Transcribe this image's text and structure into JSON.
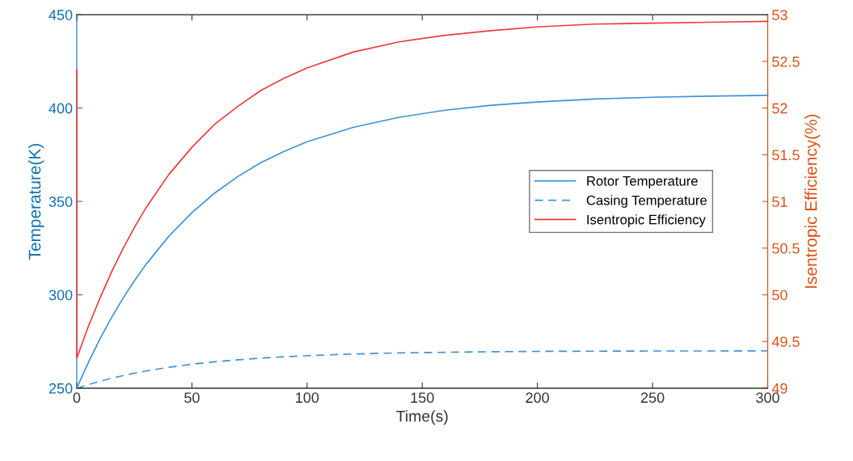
{
  "chart_data": {
    "type": "line",
    "xlabel": "Time(s)",
    "ylabel": "Temperature(K)",
    "y2label": "Isentropic Efficiency(%)",
    "xlim": [
      0,
      300
    ],
    "xticks": [
      0,
      50,
      100,
      150,
      200,
      250,
      300
    ],
    "ylim": [
      250,
      450
    ],
    "yticks": [
      250,
      300,
      350,
      400,
      450
    ],
    "y2lim": [
      49,
      53
    ],
    "y2ticks": [
      49,
      49.5,
      50,
      50.5,
      51,
      51.5,
      52,
      52.5,
      53
    ],
    "grid": false,
    "legend": "right",
    "marker": "none",
    "x": [
      0,
      5,
      10,
      15,
      20,
      25,
      30,
      40,
      50,
      60,
      70,
      80,
      90,
      100,
      120,
      140,
      160,
      180,
      200,
      225,
      250,
      275,
      300
    ],
    "series": [
      {
        "name": "Rotor Temperature",
        "color": "#3a94d6",
        "axis": "y",
        "line_style": "solid",
        "values": [
          250,
          263.7,
          276.2,
          287.6,
          298.0,
          307.5,
          316.2,
          331.4,
          344.0,
          354.6,
          363.4,
          370.8,
          376.8,
          382.0,
          389.7,
          395.1,
          398.9,
          401.5,
          403.3,
          404.9,
          405.8,
          406.4,
          406.8
        ]
      },
      {
        "name": "Casing Temperature",
        "color": "#3a94d6",
        "axis": "y",
        "line_style": "dashed",
        "values": [
          250,
          251.9,
          253.7,
          255.3,
          256.7,
          258.0,
          259.2,
          261.2,
          262.8,
          264.1,
          265.2,
          266.1,
          266.8,
          267.4,
          268.3,
          268.9,
          269.2,
          269.5,
          269.7,
          269.8,
          269.9,
          269.9,
          270.0
        ]
      },
      {
        "name": "Isentropic Efficiency",
        "color": "#ee3b3b",
        "axis": "y2",
        "line_style": "solid",
        "x": [
          0,
          0,
          5,
          10,
          15,
          20,
          25,
          30,
          40,
          50,
          60,
          70,
          80,
          90,
          100,
          120,
          140,
          160,
          180,
          200,
          225,
          250,
          275,
          300
        ],
        "values": [
          52.41,
          49.32,
          49.66,
          49.96,
          50.24,
          50.49,
          50.72,
          50.93,
          51.29,
          51.58,
          51.83,
          52.02,
          52.19,
          52.32,
          52.43,
          52.6,
          52.71,
          52.78,
          52.83,
          52.87,
          52.9,
          52.91,
          52.92,
          52.93
        ]
      }
    ]
  }
}
